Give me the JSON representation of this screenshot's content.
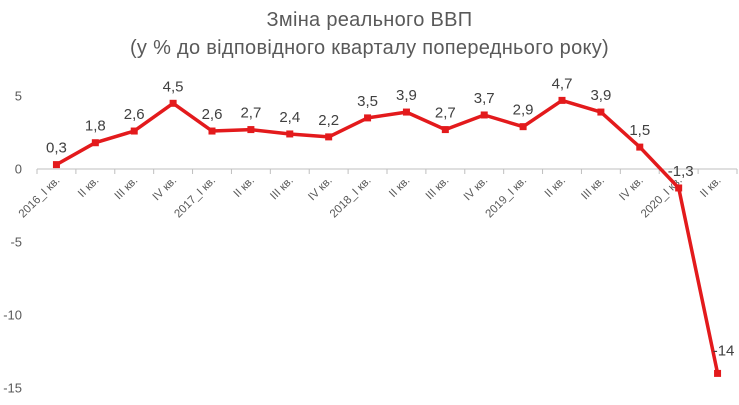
{
  "chart_data": {
    "type": "line",
    "title": "Зміна реального ВВП",
    "subtitle": "(у % до відповідного кварталу попереднього року)",
    "categories": [
      "2016_I кв.",
      "II кв.",
      "III кв.",
      "IV кв.",
      "2017_I кв.",
      "II кв.",
      "III кв.",
      "IV кв.",
      "2018_I кв.",
      "II кв.",
      "III кв.",
      "IV кв.",
      "2019_I кв.",
      "II кв.",
      "III кв.",
      "IV кв.",
      "2020_I кв.",
      "II кв."
    ],
    "values": [
      0.3,
      1.8,
      2.6,
      4.5,
      2.6,
      2.7,
      2.4,
      2.2,
      3.5,
      3.9,
      2.7,
      3.7,
      2.9,
      4.7,
      3.9,
      1.5,
      -1.3,
      -14
    ],
    "data_labels": [
      "0,3",
      "1,8",
      "2,6",
      "4,5",
      "2,6",
      "2,7",
      "2,4",
      "2,2",
      "3,5",
      "3,9",
      "2,7",
      "3,7",
      "2,9",
      "4,7",
      "3,9",
      "1,5",
      "-1,3",
      "-14"
    ],
    "y_ticks": [
      5,
      0,
      -5,
      -10,
      -15
    ],
    "ylim": [
      -15,
      5
    ],
    "xlabel": "",
    "ylabel": "",
    "grid": false,
    "legend": "none",
    "line_color": "#e31a1c"
  }
}
